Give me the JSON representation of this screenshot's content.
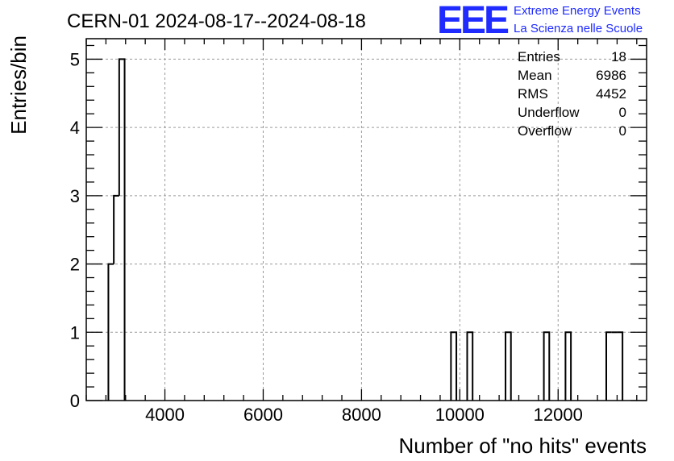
{
  "chart_data": {
    "type": "bar",
    "title": "CERN-01 2024-08-17--2024-08-18",
    "xlabel": "Number of \"no hits\" events",
    "ylabel": "Entries/bin",
    "xlim": [
      2400,
      13800
    ],
    "ylim": [
      0,
      5.3
    ],
    "xticks": [
      4000,
      6000,
      8000,
      10000,
      12000
    ],
    "yticks": [
      0,
      1,
      2,
      3,
      4,
      5
    ],
    "grid": true,
    "histogram": "step",
    "bins": [
      {
        "x0": 2850,
        "x1": 2960,
        "count": 2
      },
      {
        "x0": 2960,
        "x1": 3070,
        "count": 3
      },
      {
        "x0": 3070,
        "x1": 3180,
        "count": 5
      },
      {
        "x0": 9820,
        "x1": 9930,
        "count": 1
      },
      {
        "x0": 10150,
        "x1": 10260,
        "count": 1
      },
      {
        "x0": 10930,
        "x1": 11040,
        "count": 1
      },
      {
        "x0": 11710,
        "x1": 11820,
        "count": 1
      },
      {
        "x0": 12150,
        "x1": 12260,
        "count": 1
      },
      {
        "x0": 12980,
        "x1": 13090,
        "count": 1
      },
      {
        "x0": 13090,
        "x1": 13200,
        "count": 1
      },
      {
        "x0": 13200,
        "x1": 13310,
        "count": 1
      }
    ],
    "stats": [
      {
        "label": "Entries",
        "value": "18"
      },
      {
        "label": "Mean",
        "value": "6986"
      },
      {
        "label": "RMS",
        "value": "4452"
      },
      {
        "label": "Underflow",
        "value": "0"
      },
      {
        "label": "Overflow",
        "value": "0"
      }
    ]
  },
  "logo": {
    "letters": "EEE",
    "line1": "Extreme Energy Events",
    "line2": "La Scienza nelle Scuole",
    "color": "#1f2bff"
  }
}
